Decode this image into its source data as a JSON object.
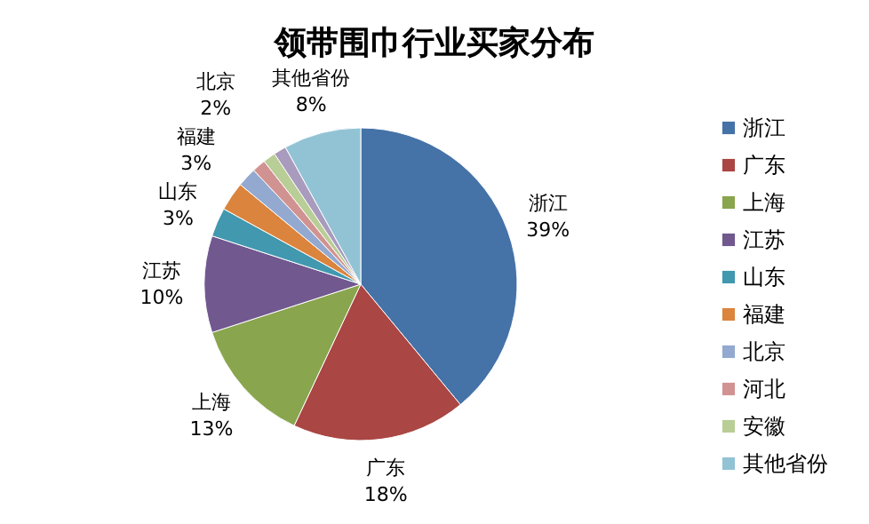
{
  "chart_data": {
    "type": "pie",
    "title": "领带围巾行业买家分布",
    "categories": [
      "浙江",
      "广东",
      "上海",
      "江苏",
      "山东",
      "福建",
      "北京",
      "河北",
      "安徽",
      null,
      "其他省份"
    ],
    "values": [
      39,
      18,
      13,
      10,
      3,
      3,
      2,
      1.4,
      1.3,
      1.3,
      8
    ],
    "value_labels": [
      "39%",
      "18%",
      "13%",
      "10%",
      "3%",
      "3%",
      "2%",
      null,
      null,
      null,
      "8%"
    ],
    "colors": [
      "#4572a7",
      "#aa4643",
      "#89a54e",
      "#71588f",
      "#4198af",
      "#db843d",
      "#93a9cf",
      "#d19392",
      "#b9cd96",
      "#a99bbd",
      "#92c3d5"
    ],
    "legend": "right"
  }
}
